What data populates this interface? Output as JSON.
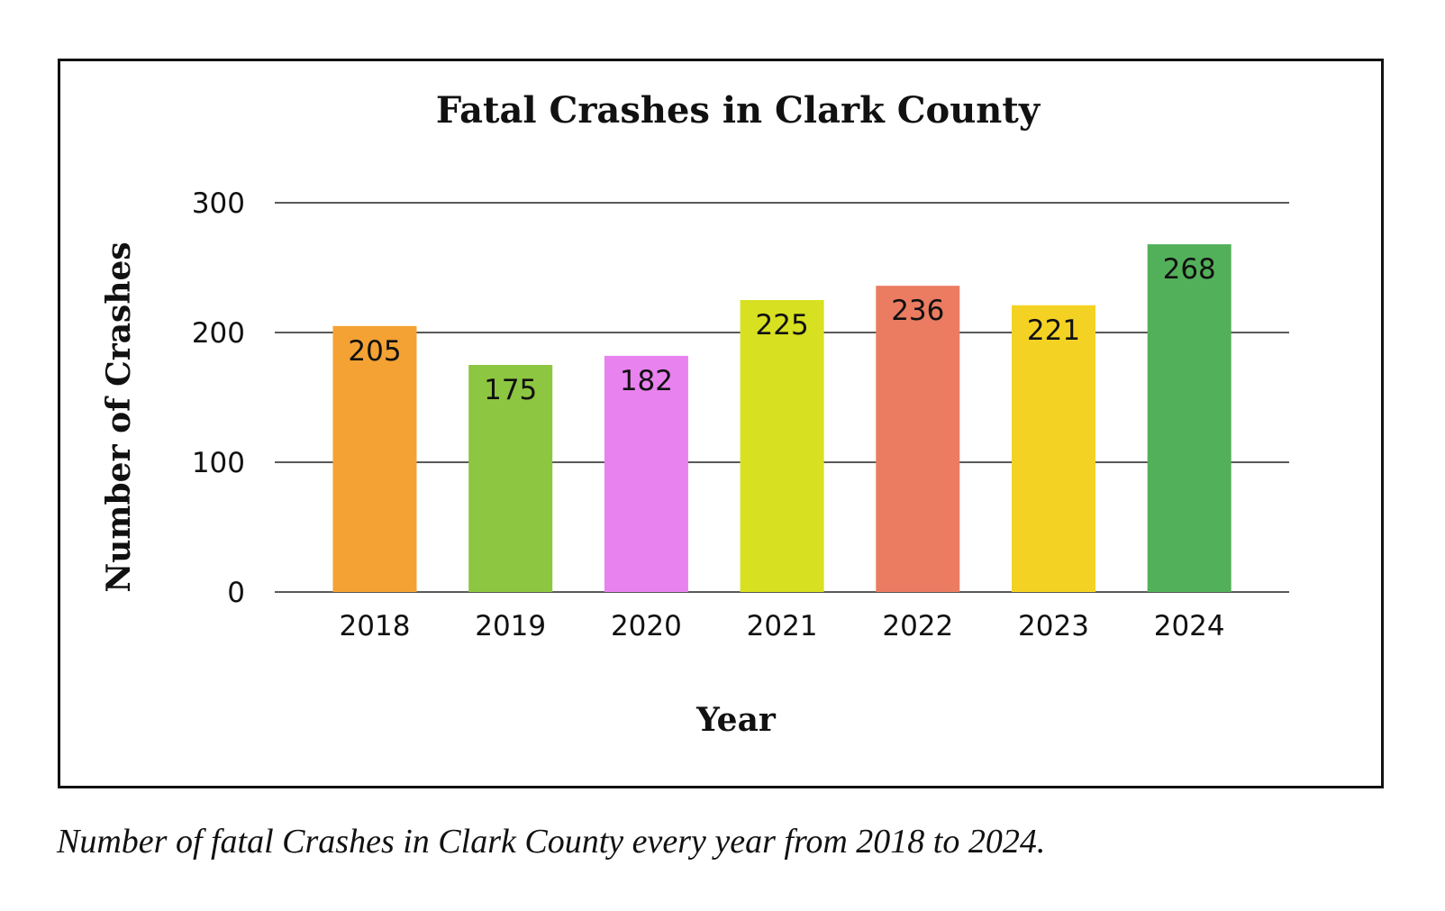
{
  "chart_data": {
    "type": "bar",
    "title": "Fatal Crashes in Clark County",
    "xlabel": "Year",
    "ylabel": "Number of Crashes",
    "categories": [
      "2018",
      "2019",
      "2020",
      "2021",
      "2022",
      "2023",
      "2024"
    ],
    "values": [
      205,
      175,
      182,
      225,
      236,
      221,
      268
    ],
    "data_labels": [
      "205",
      "175",
      "182",
      "225",
      "236",
      "221",
      "268"
    ],
    "colors": [
      "#F4A233",
      "#8DC641",
      "#E882EF",
      "#D7E021",
      "#EB7C62",
      "#F4D223",
      "#53B05A"
    ],
    "ylim": [
      0,
      300
    ],
    "yticks": [
      0,
      100,
      200,
      300
    ],
    "ytick_labels": [
      "0",
      "100",
      "200",
      "300"
    ],
    "grid": true,
    "legend": "none"
  },
  "caption": "Number of fatal Crashes in Clark County every year from 2018 to 2024."
}
